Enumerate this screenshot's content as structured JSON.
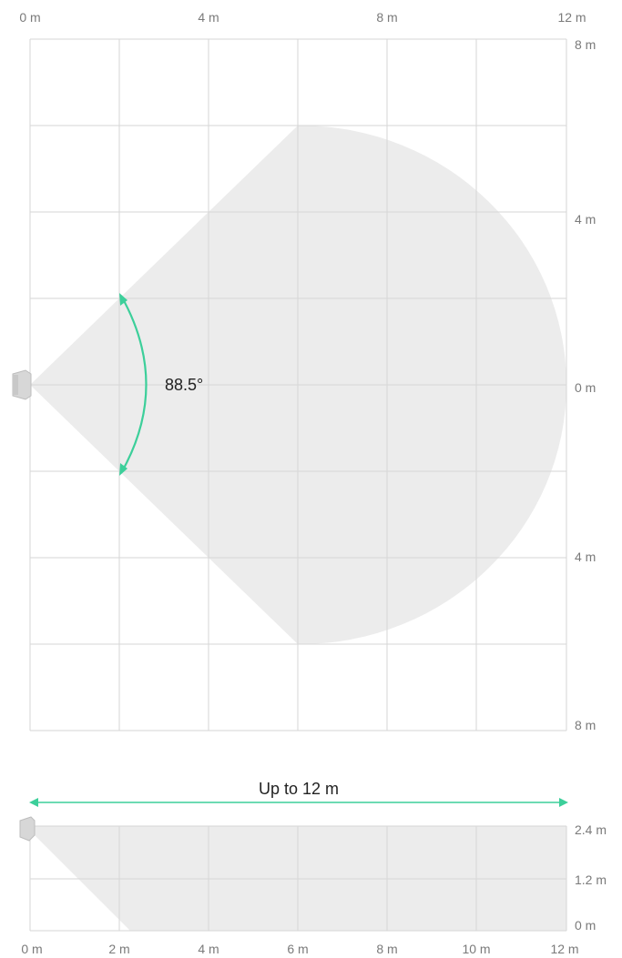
{
  "top_view": {
    "top_axis_labels": [
      "0 m",
      "4 m",
      "8 m",
      "12 m"
    ],
    "right_axis_labels": [
      "8 m",
      "4 m",
      "0 m",
      "4 m",
      "8 m"
    ],
    "angle_label": "88.5°",
    "coverage_color": "#ececec",
    "arrow_color": "#3ccf9a"
  },
  "side_view": {
    "range_label": "Up to 12 m",
    "bottom_axis_labels": [
      "0 m",
      "2 m",
      "4 m",
      "6 m",
      "8 m",
      "10 m",
      "12 m"
    ],
    "right_axis_labels": [
      "2.4 m",
      "1.2 m",
      "0 m"
    ],
    "coverage_color": "#ececec",
    "arrow_color": "#3ccf9a"
  }
}
